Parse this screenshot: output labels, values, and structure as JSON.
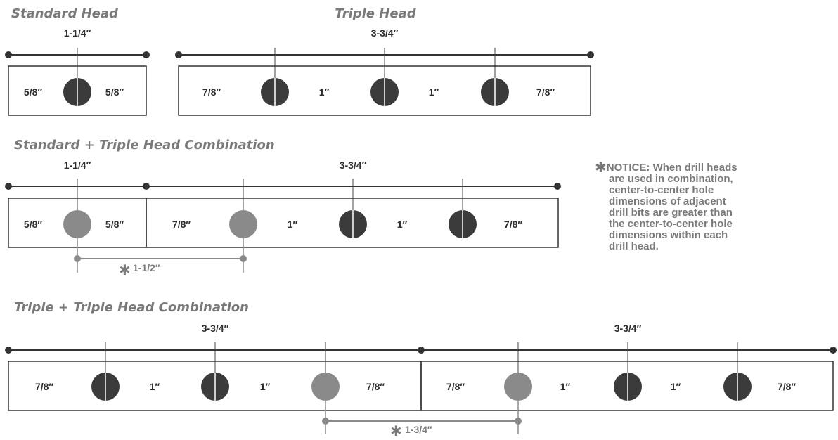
{
  "colors": {
    "dark": "#3b3b3b",
    "gray": "#8a8a8a",
    "line": "#333333",
    "title": "#7a7a7a"
  },
  "standard_head": {
    "title": "Standard Head",
    "width": "1-1/4″",
    "left": "5/8″",
    "right": "5/8″"
  },
  "triple_head": {
    "title": "Triple Head",
    "width": "3-3/4″",
    "gaps": [
      "7/8″",
      "1″",
      "1″",
      "7/8″"
    ]
  },
  "combo_standard_triple": {
    "title": "Standard + Triple Head Combination",
    "standard_width": "1-1/4″",
    "triple_width": "3-3/4″",
    "standard_gaps": [
      "5/8″",
      "5/8″"
    ],
    "triple_gaps": [
      "7/8″",
      "1″",
      "1″",
      "7/8″"
    ],
    "adjacent_star": "✱",
    "adjacent_spacing": "1-1/2″"
  },
  "combo_triple_triple": {
    "title": "Triple + Triple Head Combination",
    "left_width": "3-3/4″",
    "right_width": "3-3/4″",
    "left_gaps": [
      "7/8″",
      "1″",
      "1″",
      "7/8″"
    ],
    "right_gaps": [
      "7/8″",
      "1″",
      "1″",
      "7/8″"
    ],
    "adjacent_star": "✱",
    "adjacent_spacing": "1-3/4″"
  },
  "notice": {
    "star": "✱",
    "lines": [
      "NOTICE: When drill heads",
      "are used in combination,",
      "center-to-center hole",
      "dimensions of adjacent",
      "drill bits are greater than",
      "the center-to-center hole",
      "dimensions within each",
      "drill head."
    ]
  }
}
